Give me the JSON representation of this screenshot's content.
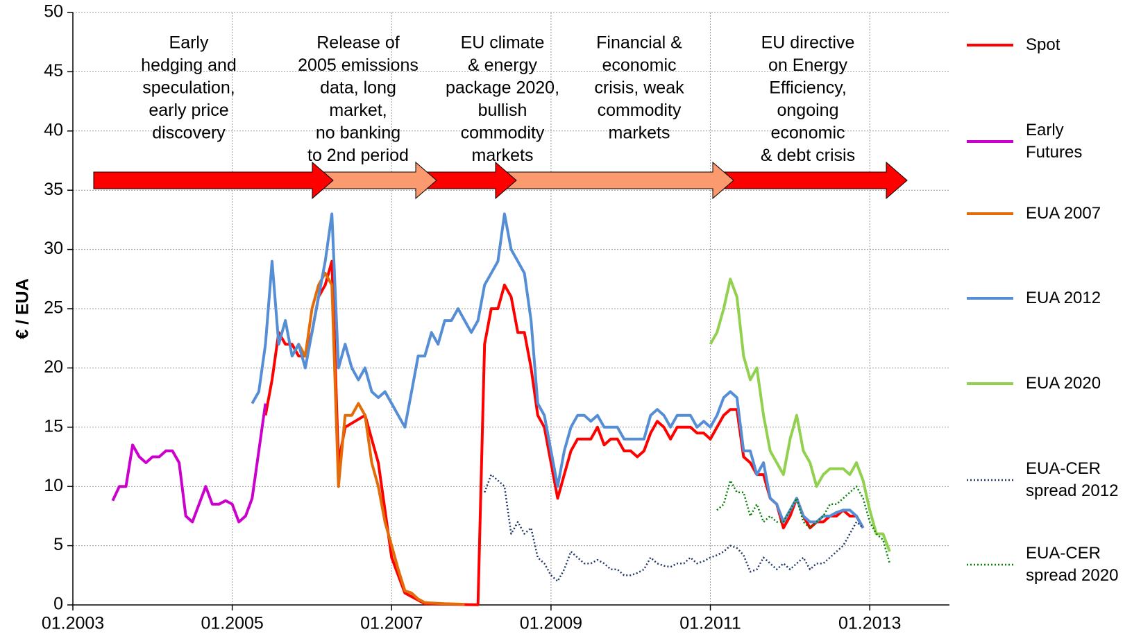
{
  "chart_data": {
    "type": "line",
    "ylabel": "€ / EUA",
    "xlim": [
      "2003-01",
      "2014-01"
    ],
    "xticks": [
      {
        "value": "2003-01",
        "label": "01.2003"
      },
      {
        "value": "2005-01",
        "label": "01.2005"
      },
      {
        "value": "2007-01",
        "label": "01.2007"
      },
      {
        "value": "2009-01",
        "label": "01.2009"
      },
      {
        "value": "2011-01",
        "label": "01.2011"
      },
      {
        "value": "2013-01",
        "label": "01.2013"
      }
    ],
    "ylim": [
      0,
      50
    ],
    "yticks": [
      0,
      5,
      10,
      15,
      20,
      25,
      30,
      35,
      40,
      45,
      50
    ],
    "grid": true,
    "legend": "right",
    "annotations": [
      [
        "Early",
        "hedging and",
        "speculation,",
        "early price",
        "discovery"
      ],
      [
        "Release of",
        "2005 emissions",
        "data, long",
        "market,",
        "no banking",
        "to 2nd period"
      ],
      [
        "EU climate",
        "& energy",
        "package 2020,",
        "bullish",
        "commodity",
        "markets"
      ],
      [
        "Financial &",
        "economic",
        "crisis, weak",
        "commodity",
        "markets"
      ],
      [
        "EU directive",
        "on Energy",
        "Efficiency,",
        "ongoing",
        "economic",
        "& debt crisis"
      ]
    ],
    "series": [
      {
        "name": "Spot",
        "color": "#ff0000",
        "dash": false,
        "x": [
          "2005-06",
          "2005-07",
          "2005-08",
          "2005-09",
          "2005-10",
          "2005-11",
          "2005-12",
          "2006-01",
          "2006-02",
          "2006-03",
          "2006-04",
          "2006-05",
          "2006-06",
          "2006-09",
          "2006-11",
          "2007-01",
          "2007-03",
          "2007-06",
          "2007-12",
          "2008-02",
          "2008-03",
          "2008-04",
          "2008-05",
          "2008-06",
          "2008-07",
          "2008-08",
          "2008-09",
          "2008-10",
          "2008-11",
          "2008-12",
          "2009-01",
          "2009-02",
          "2009-03",
          "2009-04",
          "2009-05",
          "2009-06",
          "2009-07",
          "2009-08",
          "2009-09",
          "2009-10",
          "2009-11",
          "2009-12",
          "2010-01",
          "2010-02",
          "2010-03",
          "2010-04",
          "2010-05",
          "2010-06",
          "2010-07",
          "2010-08",
          "2010-09",
          "2010-10",
          "2010-11",
          "2010-12",
          "2011-01",
          "2011-02",
          "2011-03",
          "2011-04",
          "2011-05",
          "2011-06",
          "2011-07",
          "2011-08",
          "2011-09",
          "2011-10",
          "2011-11",
          "2011-12",
          "2012-01",
          "2012-02",
          "2012-03",
          "2012-04",
          "2012-05",
          "2012-06",
          "2012-07",
          "2012-08",
          "2012-09",
          "2012-10",
          "2012-11",
          "2012-12"
        ],
        "values": [
          16,
          19,
          23,
          22,
          22,
          21,
          21,
          23,
          26,
          27,
          29,
          12,
          15,
          16,
          12,
          4,
          1,
          0.1,
          0.03,
          0.02,
          22,
          25,
          25,
          27,
          26,
          23,
          23,
          20,
          16,
          15,
          12,
          9,
          11,
          13,
          14,
          14,
          14,
          15,
          13.5,
          14,
          14,
          13,
          13,
          12.5,
          13,
          14.5,
          15.5,
          15,
          14,
          15,
          15,
          15,
          14.5,
          14.5,
          14,
          15,
          16,
          16.5,
          16.5,
          12.5,
          12,
          11,
          11,
          9,
          8.5,
          6.5,
          7.5,
          9,
          7.5,
          6.5,
          7,
          7,
          7.5,
          7.5,
          8,
          7.5,
          7.5,
          6.5
        ]
      },
      {
        "name": "Early Futures",
        "color": "#cc00cc",
        "dash": false,
        "x": [
          "2003-07",
          "2003-08",
          "2003-09",
          "2003-10",
          "2003-11",
          "2003-12",
          "2004-01",
          "2004-02",
          "2004-03",
          "2004-04",
          "2004-05",
          "2004-06",
          "2004-07",
          "2004-08",
          "2004-09",
          "2004-10",
          "2004-11",
          "2004-12",
          "2005-01",
          "2005-02",
          "2005-03",
          "2005-04",
          "2005-05",
          "2005-06"
        ],
        "values": [
          8.8,
          10,
          10,
          13.5,
          12.5,
          12,
          12.5,
          12.5,
          13,
          13,
          12,
          7.5,
          7,
          8.5,
          10,
          8.5,
          8.5,
          8.8,
          8.5,
          7,
          7.5,
          9,
          13,
          17
        ]
      },
      {
        "name": "EUA 2007",
        "color": "#e36c09",
        "dash": false,
        "x": [
          "2005-10",
          "2005-11",
          "2005-12",
          "2006-01",
          "2006-02",
          "2006-03",
          "2006-04",
          "2006-05",
          "2006-06",
          "2006-07",
          "2006-08",
          "2006-09",
          "2006-10",
          "2006-11",
          "2006-12",
          "2007-01",
          "2007-02",
          "2007-03",
          "2007-04",
          "2007-05",
          "2007-06",
          "2007-09",
          "2007-12"
        ],
        "values": [
          21,
          22,
          21,
          25,
          27,
          28,
          27,
          10,
          16,
          16,
          17,
          16,
          12,
          10,
          7,
          5,
          3,
          1.2,
          1,
          0.5,
          0.2,
          0.1,
          0.05
        ]
      },
      {
        "name": "EUA 2012",
        "color": "#558ed5",
        "dash": false,
        "x": [
          "2005-04",
          "2005-05",
          "2005-06",
          "2005-07",
          "2005-08",
          "2005-09",
          "2005-10",
          "2005-11",
          "2005-12",
          "2006-01",
          "2006-02",
          "2006-03",
          "2006-04",
          "2006-05",
          "2006-06",
          "2006-07",
          "2006-08",
          "2006-09",
          "2006-10",
          "2006-11",
          "2006-12",
          "2007-01",
          "2007-02",
          "2007-03",
          "2007-04",
          "2007-05",
          "2007-06",
          "2007-07",
          "2007-08",
          "2007-09",
          "2007-10",
          "2007-11",
          "2007-12",
          "2008-01",
          "2008-02",
          "2008-03",
          "2008-04",
          "2008-05",
          "2008-06",
          "2008-07",
          "2008-08",
          "2008-09",
          "2008-10",
          "2008-11",
          "2008-12",
          "2009-01",
          "2009-02",
          "2009-03",
          "2009-04",
          "2009-05",
          "2009-06",
          "2009-07",
          "2009-08",
          "2009-09",
          "2009-10",
          "2009-11",
          "2009-12",
          "2010-01",
          "2010-02",
          "2010-03",
          "2010-04",
          "2010-05",
          "2010-06",
          "2010-07",
          "2010-08",
          "2010-09",
          "2010-10",
          "2010-11",
          "2010-12",
          "2011-01",
          "2011-02",
          "2011-03",
          "2011-04",
          "2011-05",
          "2011-06",
          "2011-07",
          "2011-08",
          "2011-09",
          "2011-10",
          "2011-11",
          "2011-12",
          "2012-01",
          "2012-02",
          "2012-03",
          "2012-04",
          "2012-05",
          "2012-06",
          "2012-07",
          "2012-08",
          "2012-09",
          "2012-10",
          "2012-11",
          "2012-12"
        ],
        "values": [
          17,
          18,
          22,
          29,
          22,
          24,
          21,
          22,
          20,
          23,
          26,
          29,
          33,
          20,
          22,
          20,
          19,
          20,
          18,
          17.5,
          18,
          17,
          16,
          15,
          18,
          21,
          21,
          23,
          22,
          24,
          24,
          25,
          24,
          23,
          24,
          27,
          28,
          29,
          33,
          30,
          29,
          28,
          24,
          17,
          16,
          13,
          10,
          13,
          15,
          16,
          16,
          15.5,
          16,
          15,
          15,
          15,
          14,
          14,
          14,
          14,
          16,
          16.5,
          16,
          15,
          16,
          16,
          16,
          15,
          15.5,
          15,
          16,
          17.5,
          18,
          17.5,
          13,
          13,
          11,
          12,
          9,
          8.5,
          7,
          8,
          9,
          7.5,
          7,
          7,
          7.5,
          7.5,
          7.8,
          8,
          8,
          7.5,
          6.5
        ]
      },
      {
        "name": "EUA 2020",
        "color": "#92d050",
        "dash": false,
        "x": [
          "2011-01",
          "2011-02",
          "2011-03",
          "2011-04",
          "2011-05",
          "2011-06",
          "2011-07",
          "2011-08",
          "2011-09",
          "2011-10",
          "2011-11",
          "2011-12",
          "2012-01",
          "2012-02",
          "2012-03",
          "2012-04",
          "2012-05",
          "2012-06",
          "2012-07",
          "2012-08",
          "2012-09",
          "2012-10",
          "2012-11",
          "2012-12",
          "2013-01",
          "2013-02",
          "2013-03",
          "2013-04"
        ],
        "values": [
          22,
          23,
          25,
          27.5,
          26,
          21,
          19,
          20,
          16,
          13,
          12,
          11,
          14,
          16,
          13,
          12,
          10,
          11,
          11.5,
          11.5,
          11.5,
          11,
          12,
          10.5,
          8,
          6,
          6,
          4.5
        ]
      },
      {
        "name": "EUA-CER spread 2012",
        "color": "#1f3864",
        "dash": true,
        "x": [
          "2008-03",
          "2008-04",
          "2008-05",
          "2008-06",
          "2008-07",
          "2008-08",
          "2008-09",
          "2008-10",
          "2008-11",
          "2008-12",
          "2009-01",
          "2009-02",
          "2009-03",
          "2009-04",
          "2009-05",
          "2009-06",
          "2009-07",
          "2009-08",
          "2009-09",
          "2009-10",
          "2009-11",
          "2009-12",
          "2010-01",
          "2010-02",
          "2010-03",
          "2010-04",
          "2010-05",
          "2010-06",
          "2010-07",
          "2010-08",
          "2010-09",
          "2010-10",
          "2010-11",
          "2010-12",
          "2011-01",
          "2011-02",
          "2011-03",
          "2011-04",
          "2011-05",
          "2011-06",
          "2011-07",
          "2011-08",
          "2011-09",
          "2011-10",
          "2011-11",
          "2011-12",
          "2012-01",
          "2012-02",
          "2012-03",
          "2012-04",
          "2012-05",
          "2012-06",
          "2012-07",
          "2012-08",
          "2012-09",
          "2012-10",
          "2012-11",
          "2012-12"
        ],
        "values": [
          9.5,
          11,
          10.5,
          10,
          6,
          7,
          6,
          6.5,
          4,
          3.5,
          2.5,
          2,
          3,
          4.5,
          4,
          3.5,
          3.5,
          3.8,
          3.5,
          3,
          3,
          2.5,
          2.5,
          2.7,
          3,
          4,
          3.5,
          3.3,
          3.2,
          3.5,
          3.5,
          4,
          3.5,
          3.7,
          4,
          4.2,
          4.5,
          5,
          4.8,
          4.2,
          2.8,
          3,
          4,
          3.5,
          3,
          3.5,
          3,
          3.5,
          4,
          3,
          3.5,
          3.5,
          4,
          4.5,
          5,
          6,
          7,
          6.5
        ]
      },
      {
        "name": "EUA-CER spread 2020",
        "color": "#008000",
        "dash": true,
        "x": [
          "2011-02",
          "2011-03",
          "2011-04",
          "2011-05",
          "2011-06",
          "2011-07",
          "2011-08",
          "2011-09",
          "2011-10",
          "2011-11",
          "2011-12",
          "2012-01",
          "2012-02",
          "2012-03",
          "2012-04",
          "2012-05",
          "2012-06",
          "2012-07",
          "2012-08",
          "2012-09",
          "2012-10",
          "2012-11",
          "2012-12",
          "2013-01",
          "2013-02",
          "2013-03",
          "2013-04"
        ],
        "values": [
          8,
          8.5,
          10.5,
          9.5,
          9.5,
          7.5,
          8.5,
          7,
          7.5,
          7,
          7,
          8,
          9,
          7,
          6.5,
          7,
          7.5,
          8.5,
          8.5,
          9,
          9.5,
          10,
          9,
          7,
          6,
          5.5,
          3.5
        ]
      }
    ]
  }
}
